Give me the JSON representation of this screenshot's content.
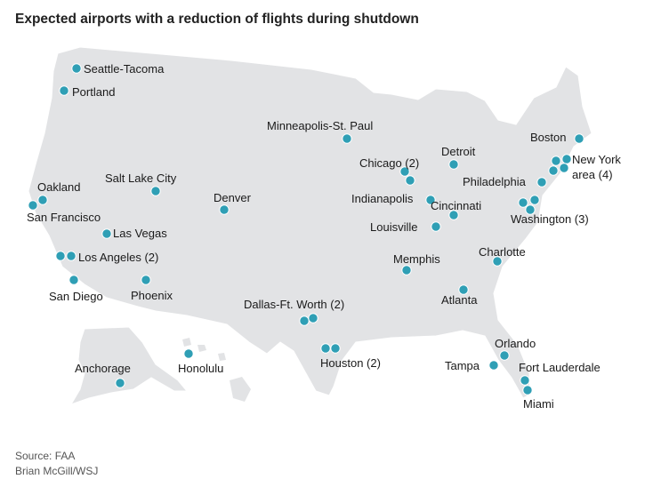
{
  "title": "Expected airports with a reduction of flights during shutdown",
  "source_lines": [
    "Source: FAA",
    "Brian McGill/WSJ"
  ],
  "colors": {
    "marker": "#2f9fb5",
    "land": "#e2e3e5",
    "border": "#ffffff"
  },
  "airports": [
    {
      "name": "Seattle-Tacoma",
      "label": "Seattle-Tacoma"
    },
    {
      "name": "Portland",
      "label": "Portland"
    },
    {
      "name": "San Francisco / Oakland",
      "labels": [
        "Oakland",
        "San Francisco"
      ]
    },
    {
      "name": "Salt Lake City",
      "label": "Salt Lake City"
    },
    {
      "name": "Denver",
      "label": "Denver"
    },
    {
      "name": "Las Vegas",
      "label": "Las Vegas"
    },
    {
      "name": "Los Angeles",
      "label": "Los Angeles (2)"
    },
    {
      "name": "San Diego",
      "label": "San Diego"
    },
    {
      "name": "Phoenix",
      "label": "Phoenix"
    },
    {
      "name": "Minneapolis-St. Paul",
      "label": "Minneapolis-St. Paul"
    },
    {
      "name": "Chicago",
      "label": "Chicago (2)"
    },
    {
      "name": "Detroit",
      "label": "Detroit"
    },
    {
      "name": "Indianapolis",
      "label": "Indianapolis"
    },
    {
      "name": "Cincinnati",
      "label": "Cincinnati"
    },
    {
      "name": "Louisville",
      "label": "Louisville"
    },
    {
      "name": "Memphis",
      "label": "Memphis"
    },
    {
      "name": "Dallas-Ft. Worth",
      "label": "Dallas-Ft. Worth (2)"
    },
    {
      "name": "Houston",
      "label": "Houston (2)"
    },
    {
      "name": "Atlanta",
      "label": "Atlanta"
    },
    {
      "name": "Charlotte",
      "label": "Charlotte"
    },
    {
      "name": "Boston",
      "label": "Boston"
    },
    {
      "name": "New York area",
      "label_lines": [
        "New York",
        "area (4)"
      ]
    },
    {
      "name": "Philadelphia",
      "label": "Philadelphia"
    },
    {
      "name": "Washington",
      "label": "Washington (3)"
    },
    {
      "name": "Orlando",
      "label": "Orlando"
    },
    {
      "name": "Tampa",
      "label": "Tampa"
    },
    {
      "name": "Fort Lauderdale",
      "label": "Fort Lauderdale"
    },
    {
      "name": "Miami",
      "label": "Miami"
    },
    {
      "name": "Anchorage",
      "label": "Anchorage"
    },
    {
      "name": "Honolulu",
      "label": "Honolulu"
    }
  ]
}
